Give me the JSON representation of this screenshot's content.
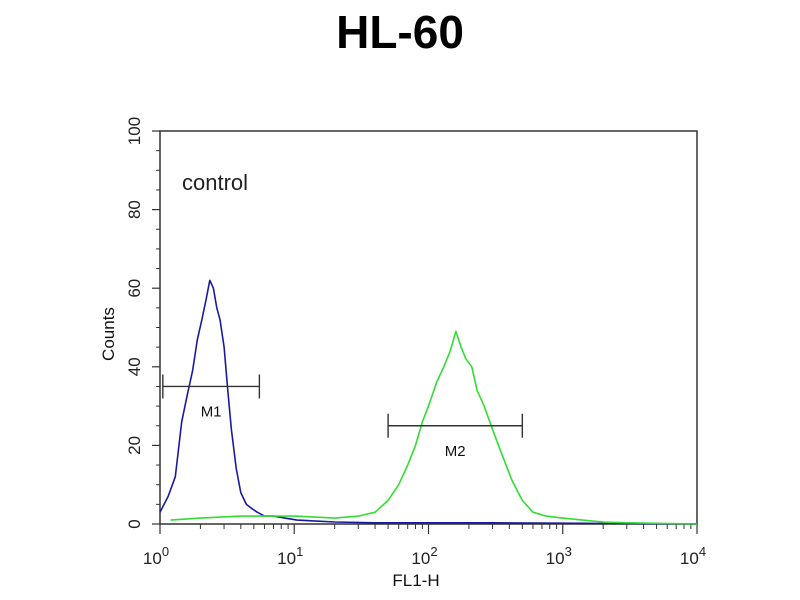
{
  "chart_data": {
    "type": "line",
    "title": "HL-60",
    "xlabel": "FL1-H",
    "ylabel": "Counts",
    "xscale": "log",
    "xlim": [
      1,
      10000
    ],
    "ylim": [
      0,
      100
    ],
    "x_ticks": [
      {
        "value": 1,
        "base": "10",
        "exp": "0"
      },
      {
        "value": 10,
        "base": "10",
        "exp": "1"
      },
      {
        "value": 100,
        "base": "10",
        "exp": "2"
      },
      {
        "value": 1000,
        "base": "10",
        "exp": "3"
      },
      {
        "value": 10000,
        "base": "10",
        "exp": "4"
      }
    ],
    "y_ticks": [
      0,
      20,
      40,
      60,
      80,
      100
    ],
    "annotations": {
      "control_label": "control",
      "gates": [
        {
          "label": "M1",
          "x_start": 1.05,
          "x_end": 5.5,
          "y": 35
        },
        {
          "label": "M2",
          "x_start": 50,
          "x_end": 500,
          "y": 25
        }
      ]
    },
    "series": [
      {
        "color": "#1a1aa0",
        "x": [
          1.0,
          1.15,
          1.3,
          1.45,
          1.6,
          1.75,
          1.9,
          2.05,
          2.2,
          2.35,
          2.5,
          2.65,
          2.8,
          3.0,
          3.2,
          3.4,
          3.7,
          4.0,
          4.4,
          4.8,
          5.3,
          6.0,
          7.0,
          8.5,
          10.5,
          14.0,
          20.0,
          40.0,
          100.0,
          300.0,
          1000.0,
          10000.0
        ],
        "y": [
          3,
          7,
          12,
          26,
          33,
          39,
          47,
          52,
          57,
          62,
          60,
          55,
          52,
          45,
          34,
          24,
          14,
          8,
          5,
          4,
          3,
          2,
          2,
          1.5,
          1,
          0.8,
          0.5,
          0.3,
          0.3,
          0.3,
          0.2,
          0
        ]
      },
      {
        "color": "#33dd33",
        "x": [
          1.2,
          2.0,
          4.0,
          10.0,
          20.0,
          30.0,
          40.0,
          50.0,
          60.0,
          70.0,
          80.0,
          90.0,
          100.0,
          115.0,
          130.0,
          145.0,
          160.0,
          175.0,
          190.0,
          210.0,
          230.0,
          260.0,
          300.0,
          350.0,
          420.0,
          500.0,
          600.0,
          750.0,
          1000.0,
          1400.0,
          2000.0,
          3000.0,
          10000.0
        ],
        "y": [
          1,
          1.5,
          2,
          2,
          1.5,
          2,
          3,
          6,
          10,
          15,
          20,
          26,
          30,
          36,
          40,
          44,
          49,
          45,
          42,
          40,
          34,
          30,
          24,
          18,
          11,
          6,
          3,
          2,
          1.5,
          1,
          0.5,
          0.3,
          0
        ]
      }
    ]
  }
}
